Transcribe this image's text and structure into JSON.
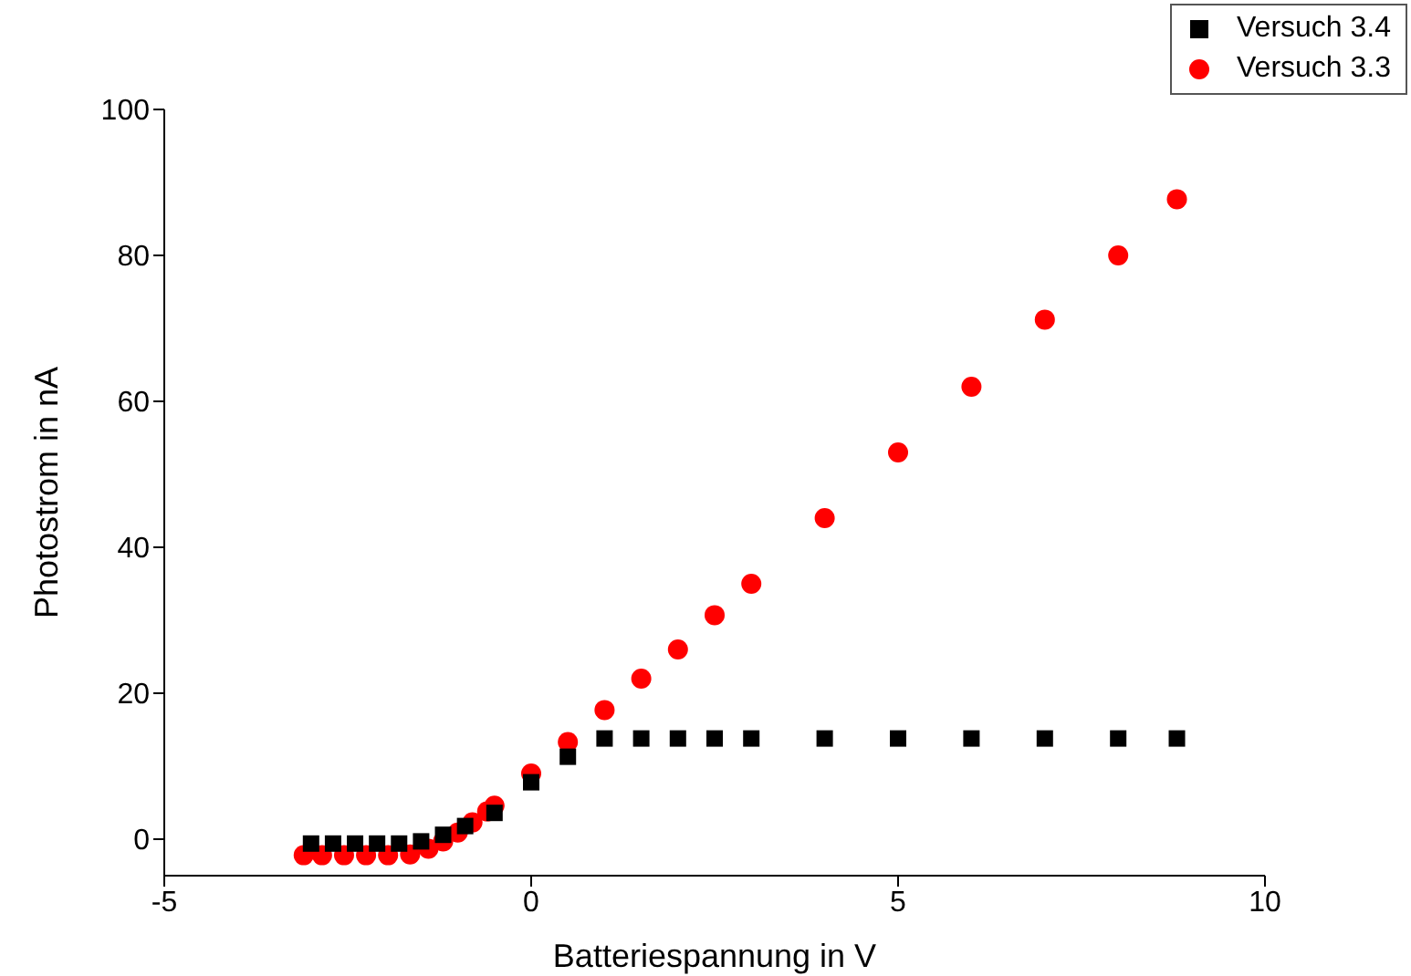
{
  "chart_data": {
    "type": "scatter",
    "xlabel": "Batteriespannung in V",
    "ylabel": "Photostrom in nA",
    "xlim": [
      -5,
      10
    ],
    "xticks": [
      -5,
      0,
      5,
      10
    ],
    "ylim": [
      -5,
      100
    ],
    "yticks": [
      0,
      20,
      40,
      60,
      80,
      100
    ],
    "legend": "top right",
    "grid": false,
    "series": [
      {
        "name": "Versuch 3.4",
        "color": "#000000",
        "marker": "square",
        "x": [
          -3.0,
          -2.7,
          -2.4,
          -2.1,
          -1.8,
          -1.5,
          -1.2,
          -0.9,
          -0.5,
          0,
          0.5,
          1,
          1.5,
          2,
          2.5,
          3,
          4,
          5,
          6,
          7,
          8,
          8.8
        ],
        "values": [
          -0.6,
          -0.6,
          -0.6,
          -0.6,
          -0.6,
          -0.3,
          0.6,
          1.8,
          3.6,
          7.8,
          11.3,
          13.8,
          13.8,
          13.8,
          13.8,
          13.8,
          13.8,
          13.8,
          13.8,
          13.8,
          13.8,
          13.8
        ]
      },
      {
        "name": "Versuch 3.3",
        "color": "#ff0000",
        "marker": "circle",
        "x": [
          -3.1,
          -2.85,
          -2.55,
          -2.25,
          -1.95,
          -1.65,
          -1.4,
          -1.2,
          -1.0,
          -0.8,
          -0.6,
          -0.5,
          0,
          0.5,
          1,
          1.5,
          2,
          2.5,
          3,
          4,
          5,
          6,
          7,
          8,
          8.8
        ],
        "values": [
          -2.2,
          -2.2,
          -2.2,
          -2.2,
          -2.2,
          -2.1,
          -1.3,
          -0.3,
          0.9,
          2.3,
          3.8,
          4.6,
          9,
          13.3,
          17.7,
          22,
          26,
          30.7,
          35,
          44,
          53,
          62,
          71.2,
          80,
          87.7
        ]
      }
    ]
  }
}
